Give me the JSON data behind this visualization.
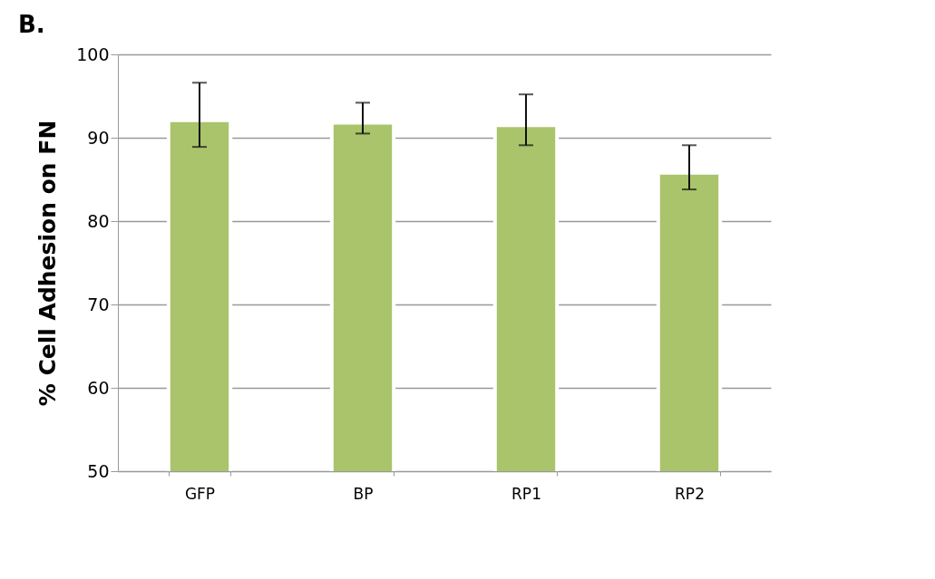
{
  "chart_data": {
    "type": "bar",
    "title": "B.",
    "ylabel": "% Cell Adhesion on FN",
    "categories": [
      "GFP",
      "BP",
      "RP1",
      "RP2"
    ],
    "values": [
      92.1,
      91.8,
      91.5,
      85.8
    ],
    "errors": [
      [
        88.9,
        96.6
      ],
      [
        90.5,
        94.2
      ],
      [
        89.1,
        95.2
      ],
      [
        83.8,
        89.1
      ]
    ],
    "color": "#a9c46a",
    "ylim": [
      50,
      100
    ],
    "yticks": [
      50,
      60,
      70,
      80,
      90,
      100
    ],
    "grid": "y"
  }
}
